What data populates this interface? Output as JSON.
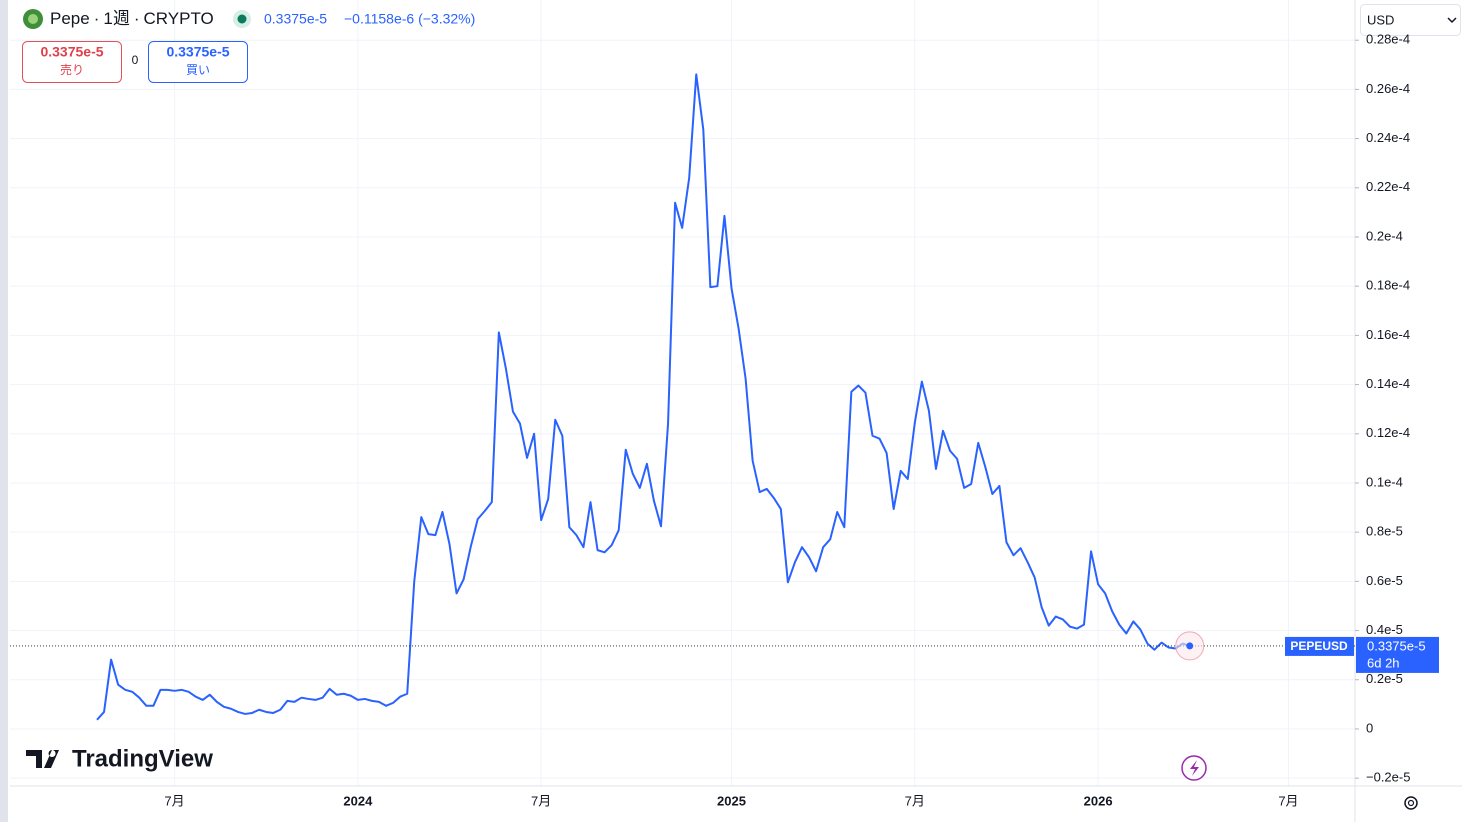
{
  "header": {
    "symbol": "Pepe",
    "interval": "1週",
    "exchange": "CRYPTO",
    "separator": "·",
    "price": "0.3375e-5",
    "change": "−0.1158e-6 (−3.32%)",
    "currency": "USD"
  },
  "trade": {
    "sell_price": "0.3375e-5",
    "sell_label": "売り",
    "spread": "0",
    "buy_price": "0.3375e-5",
    "buy_label": "買い"
  },
  "branding": "TradingView",
  "chart_data": {
    "type": "line",
    "categories": [
      null,
      null,
      null,
      null,
      null,
      null,
      null,
      null,
      null,
      null,
      null,
      "7月",
      null,
      null,
      null,
      null,
      null,
      null,
      null,
      null,
      null,
      null,
      null,
      null,
      null,
      null,
      null,
      null,
      null,
      null,
      null,
      null,
      null,
      null,
      null,
      null,
      null,
      "2024",
      null,
      null,
      null,
      null,
      null,
      null,
      null,
      null,
      null,
      null,
      null,
      null,
      null,
      null,
      null,
      null,
      null,
      null,
      null,
      null,
      null,
      null,
      null,
      null,
      null,
      "7月",
      null,
      null,
      null,
      null,
      null,
      null,
      null,
      null,
      null,
      null,
      null,
      null,
      null,
      null,
      null,
      null,
      null,
      null,
      null,
      null,
      null,
      null,
      null,
      null,
      null,
      null,
      "2025",
      null,
      null,
      null,
      null,
      null,
      null,
      null,
      null,
      null,
      null,
      null,
      null,
      null,
      null,
      null,
      null,
      null,
      null,
      null,
      null,
      null,
      null,
      null,
      null,
      null,
      "7月",
      null,
      null,
      null,
      null,
      null,
      null,
      null,
      null,
      null,
      null,
      null,
      null,
      null,
      null,
      null,
      null,
      null,
      null,
      null,
      null,
      null,
      null,
      null,
      null,
      null,
      "2026",
      null,
      null,
      null,
      null,
      null,
      null,
      null,
      null,
      null,
      null,
      null,
      null,
      null,
      null,
      null,
      null,
      null,
      null,
      null,
      null,
      null,
      null,
      null,
      null,
      null,
      null,
      "7月"
    ],
    "series": [
      {
        "name": "PEPEUSD",
        "color": "#2962ff",
        "values": [
          3.7e-07,
          6.9e-07,
          2.82e-06,
          1.8e-06,
          1.59e-06,
          1.51e-06,
          1.27e-06,
          9.4e-07,
          9.4e-07,
          1.59e-06,
          1.59e-06,
          1.55e-06,
          1.59e-06,
          1.51e-06,
          1.31e-06,
          1.18e-06,
          1.39e-06,
          1.1e-06,
          9e-07,
          8.2e-07,
          6.9e-07,
          6.1e-07,
          6.5e-07,
          7.8e-07,
          6.9e-07,
          6.5e-07,
          7.8e-07,
          1.14e-06,
          1.1e-06,
          1.27e-06,
          1.22e-06,
          1.18e-06,
          1.27e-06,
          1.63e-06,
          1.39e-06,
          1.43e-06,
          1.35e-06,
          1.18e-06,
          1.22e-06,
          1.14e-06,
          1.1e-06,
          9.4e-07,
          1.06e-06,
          1.31e-06,
          1.43e-06,
          6e-06,
          8.61e-06,
          7.92e-06,
          7.88e-06,
          8.82e-06,
          7.51e-06,
          5.51e-06,
          6.08e-06,
          7.39e-06,
          8.53e-06,
          8.86e-06,
          9.22e-06,
          1.612e-05,
          1.465e-05,
          1.29e-05,
          1.241e-05,
          1.102e-05,
          1.2e-05,
          8.49e-06,
          9.35e-06,
          1.257e-05,
          1.192e-05,
          8.2e-06,
          7.88e-06,
          7.39e-06,
          9.22e-06,
          7.27e-06,
          7.18e-06,
          7.47e-06,
          8.08e-06,
          1.135e-05,
          1.037e-05,
          9.8e-06,
          1.078e-05,
          9.27e-06,
          8.24e-06,
          1.241e-05,
          2.139e-05,
          2.037e-05,
          2.241e-05,
          2.661e-05,
          2.437e-05,
          1.796e-05,
          1.8e-05,
          2.086e-05,
          1.792e-05,
          1.629e-05,
          1.424e-05,
          1.09e-05,
          9.63e-06,
          9.76e-06,
          9.39e-06,
          8.94e-06,
          5.96e-06,
          6.78e-06,
          7.39e-06,
          6.98e-06,
          6.41e-06,
          7.39e-06,
          7.71e-06,
          8.82e-06,
          8.2e-06,
          1.371e-05,
          1.396e-05,
          1.367e-05,
          1.192e-05,
          1.18e-05,
          1.122e-05,
          8.94e-06,
          1.049e-05,
          1.016e-05,
          1.245e-05,
          1.412e-05,
          1.294e-05,
          1.057e-05,
          1.212e-05,
          1.131e-05,
          1.098e-05,
          9.8e-06,
          9.96e-06,
          1.163e-05,
          1.065e-05,
          9.55e-06,
          9.88e-06,
          7.59e-06,
          7.06e-06,
          7.35e-06,
          6.78e-06,
          6.16e-06,
          4.94e-06,
          4.2e-06,
          4.57e-06,
          4.45e-06,
          4.16e-06,
          4.08e-06,
          4.24e-06,
          7.22e-06,
          5.88e-06,
          5.51e-06,
          4.78e-06,
          4.24e-06,
          3.88e-06,
          4.37e-06,
          4.04e-06,
          3.47e-06,
          3.22e-06,
          3.51e-06,
          3.31e-06,
          3.27e-06,
          3.47e-06,
          3.375e-06,
          null,
          null,
          null,
          null,
          null,
          null,
          null,
          null,
          null,
          null,
          null,
          null,
          null,
          null
        ]
      }
    ],
    "price_tag": {
      "price": "0.3375e-5",
      "countdown": "6d 2h"
    },
    "ylim": [
      -2.32e-06,
      2.809e-05
    ],
    "yticks": [
      {
        "value": 2.8e-05,
        "label": "0.28e-4"
      },
      {
        "value": 2.6e-05,
        "label": "0.26e-4"
      },
      {
        "value": 2.4e-05,
        "label": "0.24e-4"
      },
      {
        "value": 2.2e-05,
        "label": "0.22e-4"
      },
      {
        "value": 2e-05,
        "label": "0.2e-4"
      },
      {
        "value": 1.8e-05,
        "label": "0.18e-4"
      },
      {
        "value": 1.6e-05,
        "label": "0.16e-4"
      },
      {
        "value": 1.4e-05,
        "label": "0.14e-4"
      },
      {
        "value": 1.2e-05,
        "label": "0.12e-4"
      },
      {
        "value": 1e-05,
        "label": "0.1e-4"
      },
      {
        "value": 8e-06,
        "label": "0.8e-5"
      },
      {
        "value": 6e-06,
        "label": "0.6e-5"
      },
      {
        "value": 4e-06,
        "label": "0.4e-5"
      },
      {
        "value": 2e-06,
        "label": "0.2e-5"
      },
      0,
      {
        "value": -2e-06,
        "label": "−0.2e-5"
      }
    ],
    "grid": true
  }
}
